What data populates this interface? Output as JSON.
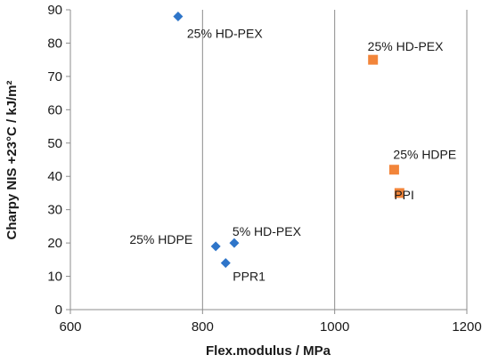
{
  "chart_data": {
    "type": "scatter",
    "title": "",
    "xlabel": "Flex.modulus / MPa",
    "ylabel": "Charpy NIS +23°C / kJ/m²",
    "xlim": [
      600,
      1200
    ],
    "ylim": [
      0,
      90
    ],
    "x_ticks": [
      600,
      800,
      1000,
      1200
    ],
    "y_ticks": [
      0,
      10,
      20,
      30,
      40,
      50,
      60,
      70,
      80,
      90
    ],
    "x_tick_labels": [
      "600",
      "800",
      "1000",
      "1200"
    ],
    "y_tick_labels": [
      "0",
      "10",
      "20",
      "30",
      "40",
      "50",
      "60",
      "70",
      "80",
      "90"
    ],
    "grid": "vertical",
    "legend": "none",
    "series": [
      {
        "marker": "diamond",
        "color": "#2e75c9",
        "points": [
          {
            "x": 763,
            "y": 88,
            "label": "25% HD-PEX"
          },
          {
            "x": 820,
            "y": 19,
            "label": "25% HDPE"
          },
          {
            "x": 848,
            "y": 20,
            "label": "5% HD-PEX"
          },
          {
            "x": 835,
            "y": 14,
            "label": "PPR1"
          }
        ]
      },
      {
        "marker": "square",
        "color": "#f2853a",
        "points": [
          {
            "x": 1058,
            "y": 75,
            "label": "25% HD-PEX"
          },
          {
            "x": 1090,
            "y": 42,
            "label": "25% HDPE"
          },
          {
            "x": 1098,
            "y": 35,
            "label": "PPI"
          }
        ]
      }
    ]
  }
}
